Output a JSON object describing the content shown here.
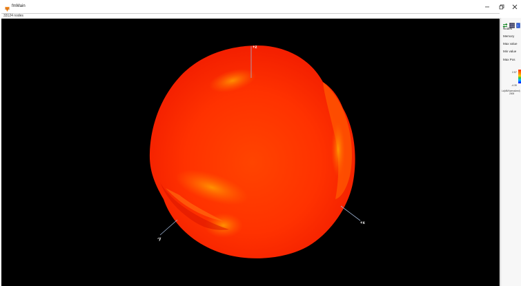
{
  "window": {
    "title": "fmMain",
    "icon": "app-logo-icon",
    "controls": [
      "minimize-icon",
      "restore-icon",
      "close-icon"
    ]
  },
  "status": {
    "node_count": "33124 nodes"
  },
  "viewport": {
    "background": "#000000",
    "model_colors": [
      "#ff1e00",
      "#ff4a00",
      "#ff8800"
    ],
    "axes": {
      "z_label": "+z",
      "x_label": "+x",
      "y_label": "-y"
    }
  },
  "panel": {
    "tool_icons": [
      "swap-arrows-icon",
      "grid-icon",
      "info-icon"
    ],
    "labels": {
      "nodes": "Nodes",
      "memory": "Memory",
      "max_value": "Max value",
      "min_value": "Min value",
      "max_pos": "Max Pos"
    },
    "legend": {
      "top_value": "2.57",
      "bottom_value": "-4.39",
      "unit_line1": "Ld(dB/Normalized)",
      "unit_line2": "2008"
    }
  }
}
